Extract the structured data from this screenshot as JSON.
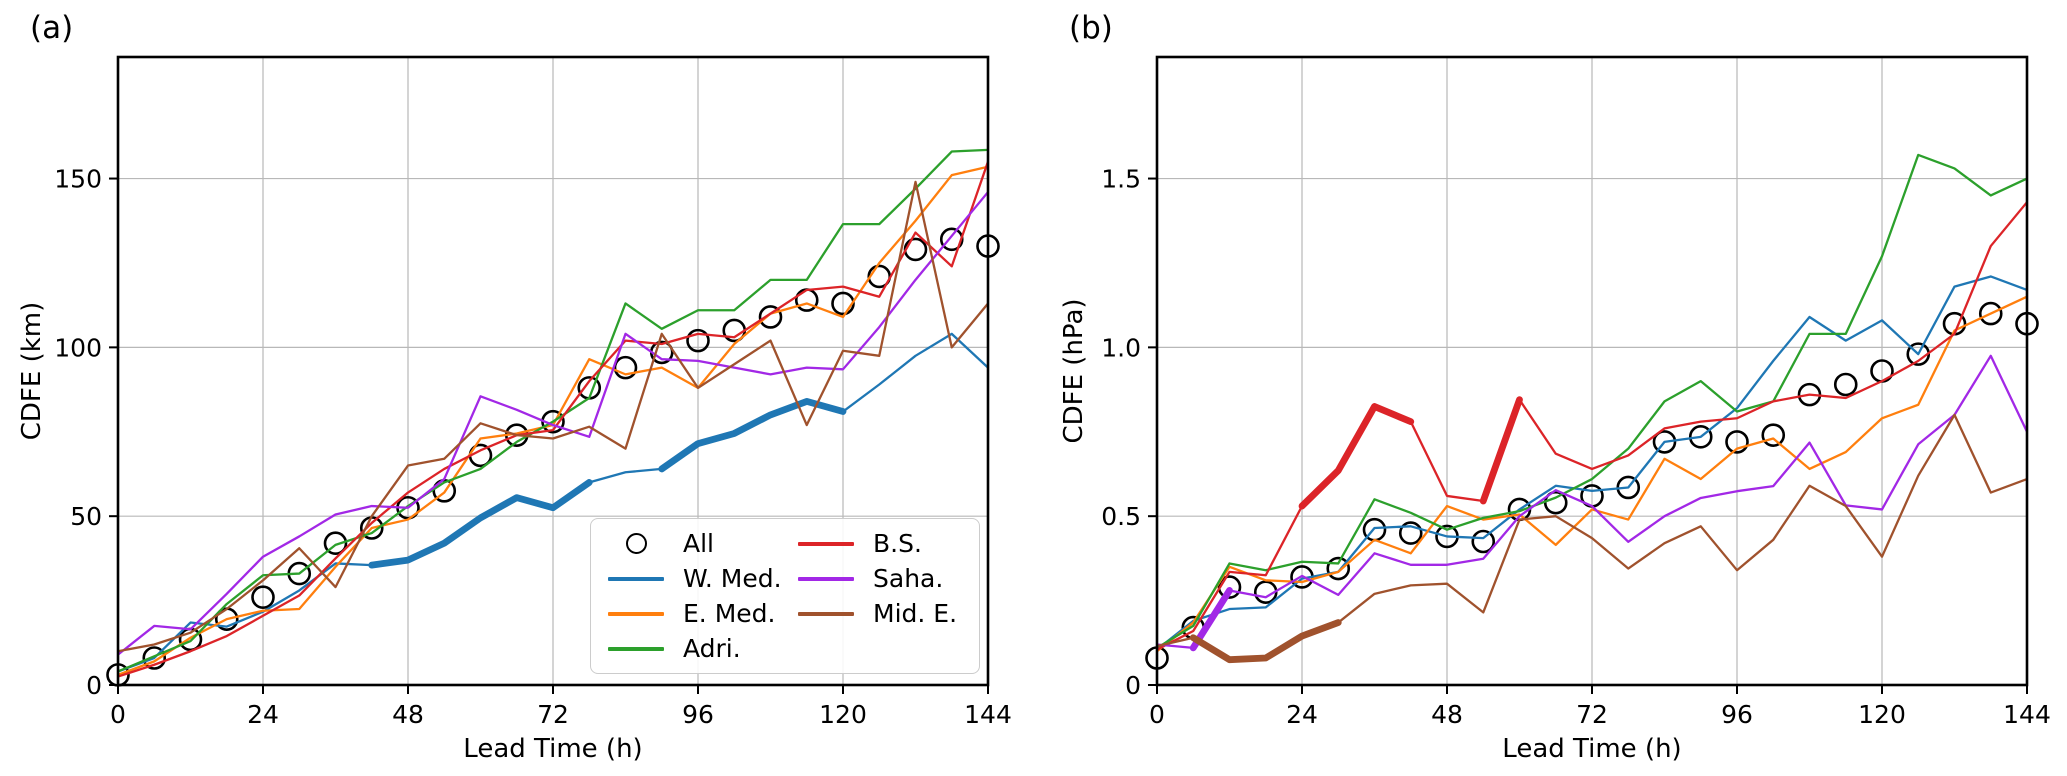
{
  "figure": {
    "background": "#ffffff"
  },
  "chart_data": [
    {
      "type": "line",
      "panel_label": "(a)",
      "xlabel": "Lead Time (h)",
      "ylabel": "CDFE (km)",
      "xlim": [
        0,
        144
      ],
      "ylim": [
        0,
        186
      ],
      "x_step": 6,
      "x_ticks": [
        0,
        24,
        48,
        72,
        96,
        120,
        144
      ],
      "x_tick_labels": [
        "0",
        "24",
        "48",
        "72",
        "96",
        "120",
        "144"
      ],
      "y_ticks": [
        0,
        50,
        100,
        150
      ],
      "y_tick_labels": [
        "0",
        "50",
        "100",
        "150"
      ],
      "grid": true,
      "legend_position": "lower right",
      "series": [
        {
          "name": "All",
          "color": "#000000",
          "style": "marker",
          "values": [
            3,
            8,
            13.5,
            19.5,
            26,
            33,
            42,
            46.5,
            52.5,
            57.5,
            68,
            74,
            78,
            88,
            94,
            98.5,
            102,
            105,
            109,
            114,
            113,
            121,
            129,
            132,
            130
          ]
        },
        {
          "name": "W. Med.",
          "color": "#1f77b4",
          "style": "line",
          "thick_ranges": [
            [
              42,
              78
            ],
            [
              90,
              120
            ]
          ],
          "values": [
            4,
            8,
            18.5,
            17.3,
            21.7,
            28,
            36,
            35.5,
            37,
            42,
            49.5,
            55.5,
            52.5,
            60,
            63,
            64,
            71.5,
            74.5,
            80,
            84,
            81,
            89,
            97.5,
            104,
            94
          ]
        },
        {
          "name": "E. Med.",
          "color": "#ff7f0e",
          "style": "line",
          "thick_ranges": [],
          "values": [
            3,
            7,
            14,
            19.5,
            22,
            22.5,
            35,
            46.5,
            49,
            57,
            73,
            74.5,
            77,
            96.5,
            92,
            94,
            88,
            101,
            110,
            113,
            109,
            125,
            137.5,
            151,
            153.5
          ]
        },
        {
          "name": "Adri.",
          "color": "#2ca02c",
          "style": "line",
          "thick_ranges": [],
          "values": [
            4,
            8.5,
            13,
            24,
            32.5,
            33,
            41.5,
            45,
            53,
            60,
            64,
            72,
            78,
            85,
            113,
            105.5,
            111,
            111,
            120,
            120,
            136.5,
            136.5,
            147,
            158,
            158.5
          ]
        },
        {
          "name": "B.S.",
          "color": "#dc2428",
          "style": "line",
          "thick_ranges": [],
          "values": [
            2.5,
            6,
            10,
            14.5,
            20.5,
            26.5,
            37.5,
            48,
            57,
            64,
            69.5,
            74,
            75.5,
            90,
            102,
            101,
            104,
            103,
            110,
            117,
            118,
            115,
            134,
            124,
            155
          ]
        },
        {
          "name": "Saha.",
          "color": "#a228e6",
          "style": "line",
          "thick_ranges": [],
          "values": [
            9,
            17.5,
            16.5,
            27,
            38,
            44,
            50.5,
            53,
            52.5,
            61,
            85.5,
            81.5,
            77,
            73.5,
            104,
            96.5,
            96,
            94,
            92,
            94,
            93.5,
            106,
            120,
            133,
            146
          ]
        },
        {
          "name": "Mid. E.",
          "color": "#a0522d",
          "style": "line",
          "thick_ranges": [],
          "values": [
            10,
            12,
            15.5,
            22.5,
            31,
            40.5,
            29,
            50,
            65,
            67,
            77.5,
            74,
            73,
            76.5,
            70,
            104,
            88,
            95,
            102,
            77,
            99,
            97.5,
            149,
            100,
            113
          ]
        }
      ]
    },
    {
      "type": "line",
      "panel_label": "(b)",
      "xlabel": "Lead Time (h)",
      "ylabel": "CDFE (hPa)",
      "xlim": [
        0,
        144
      ],
      "ylim": [
        0,
        1.86
      ],
      "x_step": 6,
      "x_ticks": [
        0,
        24,
        48,
        72,
        96,
        120,
        144
      ],
      "x_tick_labels": [
        "0",
        "24",
        "48",
        "72",
        "96",
        "120",
        "144"
      ],
      "y_ticks": [
        0,
        0.5,
        1.0,
        1.5
      ],
      "y_tick_labels": [
        "0",
        "0.5",
        "1.0",
        "1.5"
      ],
      "grid": true,
      "legend_position": "none",
      "series": [
        {
          "name": "All",
          "color": "#000000",
          "style": "marker",
          "values": [
            0.08,
            0.17,
            0.29,
            0.275,
            0.32,
            0.345,
            0.46,
            0.45,
            0.44,
            0.425,
            0.52,
            0.54,
            0.56,
            0.585,
            0.72,
            0.735,
            0.72,
            0.74,
            0.86,
            0.89,
            0.93,
            0.98,
            1.07,
            1.1,
            1.07
          ]
        },
        {
          "name": "W. Med.",
          "color": "#1f77b4",
          "style": "line",
          "thick_ranges": [],
          "values": [
            0.105,
            0.19,
            0.225,
            0.23,
            0.315,
            0.335,
            0.465,
            0.47,
            0.44,
            0.435,
            0.52,
            0.59,
            0.575,
            0.585,
            0.72,
            0.735,
            0.82,
            0.96,
            1.09,
            1.02,
            1.08,
            0.98,
            1.18,
            1.21,
            1.17
          ]
        },
        {
          "name": "E. Med.",
          "color": "#ff7f0e",
          "style": "line",
          "thick_ranges": [],
          "values": [
            0.1,
            0.185,
            0.35,
            0.31,
            0.305,
            0.335,
            0.43,
            0.39,
            0.53,
            0.49,
            0.505,
            0.415,
            0.52,
            0.49,
            0.67,
            0.61,
            0.7,
            0.73,
            0.64,
            0.69,
            0.79,
            0.83,
            1.05,
            1.1,
            1.15
          ]
        },
        {
          "name": "Adri.",
          "color": "#2ca02c",
          "style": "line",
          "thick_ranges": [],
          "values": [
            0.11,
            0.175,
            0.36,
            0.34,
            0.365,
            0.36,
            0.55,
            0.51,
            0.46,
            0.495,
            0.515,
            0.555,
            0.61,
            0.7,
            0.84,
            0.9,
            0.81,
            0.84,
            1.04,
            1.04,
            1.27,
            1.57,
            1.53,
            1.45,
            1.5
          ]
        },
        {
          "name": "B.S.",
          "color": "#dc2428",
          "style": "line",
          "thick_ranges": [
            [
              24,
              42
            ],
            [
              54,
              60
            ]
          ],
          "values": [
            0.105,
            0.16,
            0.335,
            0.325,
            0.53,
            0.635,
            0.825,
            0.78,
            0.56,
            0.545,
            0.845,
            0.685,
            0.64,
            0.68,
            0.76,
            0.78,
            0.79,
            0.84,
            0.86,
            0.85,
            0.9,
            0.96,
            1.04,
            1.3,
            1.43
          ]
        },
        {
          "name": "Saha.",
          "color": "#a228e6",
          "style": "line",
          "thick_ranges": [
            [
              6,
              12
            ]
          ],
          "values": [
            0.12,
            0.11,
            0.28,
            0.26,
            0.323,
            0.267,
            0.39,
            0.356,
            0.356,
            0.374,
            0.5,
            0.577,
            0.53,
            0.424,
            0.5,
            0.554,
            0.574,
            0.589,
            0.718,
            0.532,
            0.52,
            0.713,
            0.8,
            0.975,
            0.75
          ]
        },
        {
          "name": "Mid. E.",
          "color": "#a0522d",
          "style": "line",
          "thick_ranges": [
            [
              6,
              30
            ]
          ],
          "values": [
            0.115,
            0.14,
            0.075,
            0.08,
            0.145,
            0.185,
            0.27,
            0.295,
            0.3,
            0.215,
            0.49,
            0.5,
            0.435,
            0.345,
            0.42,
            0.47,
            0.34,
            0.43,
            0.59,
            0.53,
            0.38,
            0.62,
            0.8,
            0.57,
            0.61
          ]
        }
      ]
    }
  ],
  "legend": {
    "columns": [
      [
        "All",
        "W. Med.",
        "E. Med.",
        "Adri."
      ],
      [
        "B.S.",
        "Saha.",
        "Mid. E."
      ]
    ]
  },
  "style_hints": {
    "grid_color": "#b8b8b8",
    "spine_color": "#000000",
    "marker": "open-circle"
  }
}
